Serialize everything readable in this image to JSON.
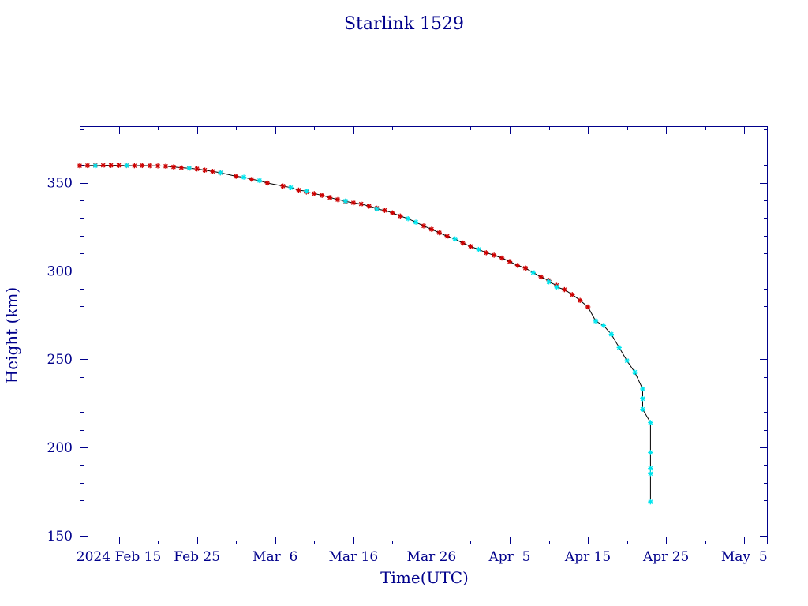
{
  "chart_data": {
    "type": "scatter",
    "title": "Starlink 1529",
    "xlabel": "Time(UTC)",
    "ylabel": "Height (km)",
    "x_unit": "date",
    "xlim": [
      "2024-02-10",
      "2024-05-08"
    ],
    "ylim": [
      145,
      382
    ],
    "x_ticks": [
      {
        "date": "2024-02-15",
        "label": "2024 Feb 15"
      },
      {
        "date": "2024-02-25",
        "label": "Feb 25"
      },
      {
        "date": "2024-03-06",
        "label": "Mar  6"
      },
      {
        "date": "2024-03-16",
        "label": "Mar 16"
      },
      {
        "date": "2024-03-26",
        "label": "Mar 26"
      },
      {
        "date": "2024-04-05",
        "label": "Apr  5"
      },
      {
        "date": "2024-04-15",
        "label": "Apr 15"
      },
      {
        "date": "2024-04-25",
        "label": "Apr 25"
      },
      {
        "date": "2024-05-05",
        "label": "May  5"
      }
    ],
    "y_ticks": [
      150,
      200,
      250,
      300,
      350
    ],
    "grid": false,
    "colors": {
      "line": "#000000",
      "red_markers": "#cc0000",
      "cyan_markers": "#00e5ee",
      "axes": "#00008b"
    },
    "series": [
      {
        "marker": "red-star",
        "x": [
          "2024-02-10",
          "2024-02-11",
          "2024-02-12",
          "2024-02-13",
          "2024-02-14",
          "2024-02-15",
          "2024-02-16",
          "2024-02-17",
          "2024-02-18",
          "2024-02-19",
          "2024-02-20",
          "2024-02-21",
          "2024-02-22",
          "2024-02-23",
          "2024-02-24",
          "2024-02-25",
          "2024-02-26",
          "2024-02-27",
          "2024-02-28",
          "2024-03-01",
          "2024-03-03",
          "2024-03-05",
          "2024-03-07",
          "2024-03-09",
          "2024-03-10",
          "2024-03-11",
          "2024-03-12",
          "2024-03-13",
          "2024-03-14",
          "2024-03-15",
          "2024-03-16",
          "2024-03-17",
          "2024-03-18",
          "2024-03-19",
          "2024-03-20",
          "2024-03-21",
          "2024-03-22",
          "2024-03-25",
          "2024-03-26",
          "2024-03-27",
          "2024-03-28",
          "2024-03-30",
          "2024-03-31",
          "2024-04-02",
          "2024-04-03",
          "2024-04-04",
          "2024-04-05",
          "2024-04-06",
          "2024-04-07",
          "2024-04-09",
          "2024-04-10",
          "2024-04-11",
          "2024-04-12",
          "2024-04-13",
          "2024-04-14",
          "2024-04-15"
        ],
        "y": [
          359.6,
          359.7,
          359.8,
          359.8,
          359.8,
          359.8,
          359.7,
          359.6,
          359.7,
          359.6,
          359.5,
          359.3,
          358.9,
          358.5,
          358.1,
          357.8,
          357.1,
          356.4,
          355.6,
          353.6,
          351.9,
          349.8,
          348.1,
          345.8,
          344.7,
          343.8,
          342.8,
          341.6,
          340.4,
          339.4,
          338.6,
          337.9,
          336.7,
          335.5,
          334.3,
          332.9,
          331.1,
          325.5,
          323.6,
          321.6,
          319.6,
          315.8,
          313.9,
          310.3,
          308.9,
          307.3,
          305.3,
          303.1,
          301.6,
          296.6,
          294.6,
          291.8,
          289.4,
          286.6,
          283.3,
          279.6
        ]
      },
      {
        "marker": "cyan-star",
        "x": [
          "2024-02-12",
          "2024-02-16",
          "2024-02-24",
          "2024-02-28",
          "2024-03-02",
          "2024-03-04",
          "2024-03-08",
          "2024-03-10",
          "2024-03-15",
          "2024-03-19",
          "2024-03-23",
          "2024-03-24",
          "2024-03-29",
          "2024-04-01",
          "2024-04-08",
          "2024-04-10",
          "2024-04-11",
          "2024-04-16",
          "2024-04-17",
          "2024-04-18",
          "2024-04-19",
          "2024-04-20",
          "2024-04-21",
          "2024-04-22",
          "2024-04-22",
          "2024-04-22",
          "2024-04-23",
          "2024-04-23",
          "2024-04-23",
          "2024-04-23",
          "2024-04-23"
        ],
        "y": [
          359.6,
          359.7,
          358.2,
          355.6,
          353.1,
          351.2,
          347.2,
          345.2,
          339.6,
          335.1,
          329.6,
          327.6,
          318.1,
          312.2,
          299.1,
          293.8,
          290.9,
          271.6,
          269.1,
          264.1,
          256.6,
          249.1,
          242.6,
          233.1,
          227.6,
          221.6,
          214.1,
          197.1,
          188.1,
          185.1,
          169.1
        ]
      }
    ]
  }
}
